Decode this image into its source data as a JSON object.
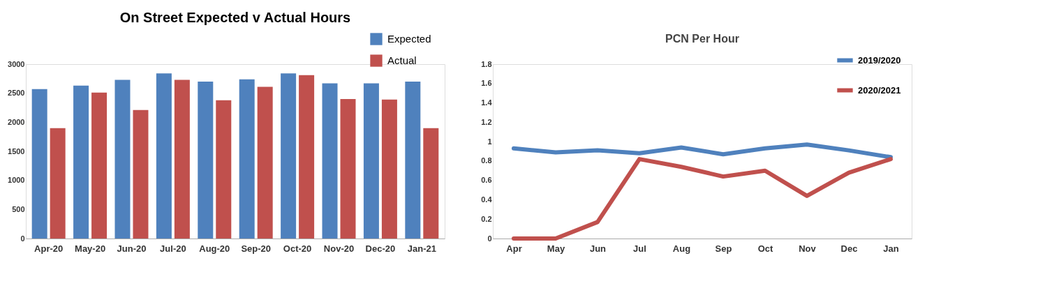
{
  "chart_data": [
    {
      "type": "bar",
      "title": "On Street Expected v Actual Hours",
      "categories": [
        "Apr-20",
        "May-20",
        "Jun-20",
        "Jul-20",
        "Aug-20",
        "Sep-20",
        "Oct-20",
        "Nov-20",
        "Dec-20",
        "Jan-21"
      ],
      "series": [
        {
          "name": "Expected",
          "color": "#4f81bd",
          "values": [
            2570,
            2630,
            2730,
            2840,
            2700,
            2740,
            2840,
            2670,
            2670,
            2700
          ]
        },
        {
          "name": "Actual",
          "color": "#c0504d",
          "values": [
            1900,
            2510,
            2210,
            2730,
            2380,
            2610,
            2810,
            2400,
            2390,
            1900
          ]
        }
      ],
      "ylim": [
        0,
        3000
      ],
      "yticks": [
        0,
        500,
        1000,
        1500,
        2000,
        2500,
        3000
      ],
      "grid": false,
      "legend": "top right"
    },
    {
      "type": "line",
      "title": "PCN Per Hour",
      "categories": [
        "Apr",
        "May",
        "Jun",
        "Jul",
        "Aug",
        "Sep",
        "Oct",
        "Nov",
        "Dec",
        "Jan"
      ],
      "series": [
        {
          "name": "2019/2020",
          "color": "#4f81bd",
          "values": [
            0.93,
            0.89,
            0.91,
            0.88,
            0.94,
            0.87,
            0.93,
            0.97,
            0.91,
            0.84
          ]
        },
        {
          "name": "2020/2021",
          "color": "#c0504d",
          "values": [
            0,
            0,
            0.17,
            0.82,
            0.74,
            0.64,
            0.7,
            0.44,
            0.68,
            0.82
          ]
        }
      ],
      "ylim": [
        0,
        1.8
      ],
      "yticks": [
        0,
        0.2,
        0.4,
        0.6,
        0.8,
        1,
        1.2,
        1.4,
        1.6,
        1.8
      ],
      "grid": false,
      "legend": "top right",
      "line_style": "solid",
      "marker": "none"
    }
  ]
}
